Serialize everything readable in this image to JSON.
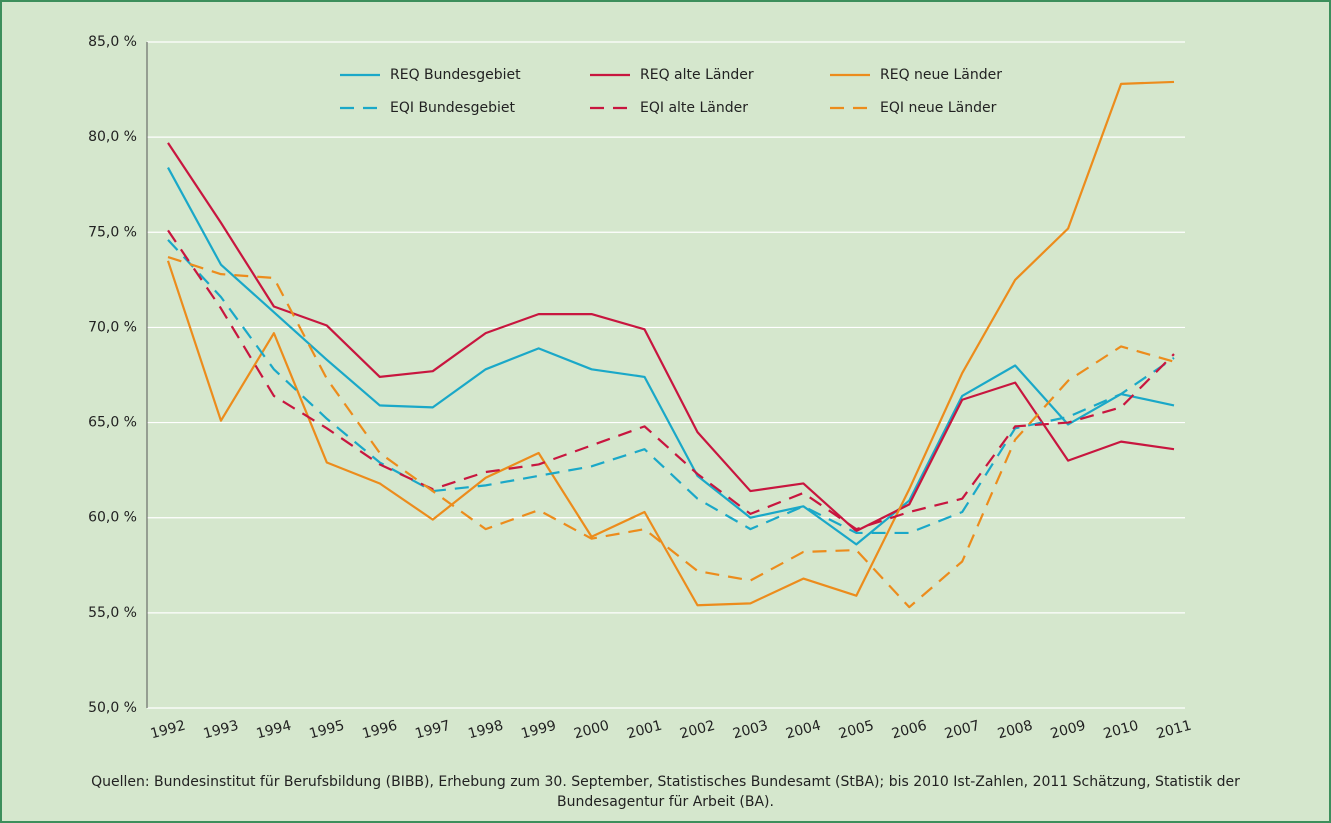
{
  "chart_data": {
    "type": "line",
    "categories": [
      "1992",
      "1993",
      "1994",
      "1995",
      "1996",
      "1997",
      "1998",
      "1999",
      "2000",
      "2001",
      "2002",
      "2003",
      "2004",
      "2005",
      "2006",
      "2007",
      "2008",
      "2009",
      "2010",
      "2011"
    ],
    "series": [
      {
        "name": "REQ Bundesgebiet",
        "color": "#1aa8c8",
        "line_style": "solid",
        "values": [
          78.4,
          73.3,
          70.8,
          68.3,
          65.9,
          65.8,
          67.8,
          68.9,
          67.8,
          67.4,
          62.2,
          60.0,
          60.6,
          58.6,
          60.9,
          66.4,
          68.0,
          64.9,
          66.5,
          65.9
        ]
      },
      {
        "name": "REQ alte Länder",
        "color": "#c8163f",
        "line_style": "solid",
        "values": [
          79.7,
          75.5,
          71.1,
          70.1,
          67.4,
          67.7,
          69.7,
          70.7,
          70.7,
          69.9,
          64.5,
          61.4,
          61.8,
          59.3,
          60.7,
          66.2,
          67.1,
          63.0,
          64.0,
          63.6
        ]
      },
      {
        "name": "REQ neue Länder",
        "color": "#ec8c1c",
        "line_style": "solid",
        "values": [
          73.5,
          65.1,
          69.7,
          62.9,
          61.8,
          59.9,
          62.1,
          63.4,
          59.0,
          60.3,
          55.4,
          55.5,
          56.8,
          55.9,
          61.5,
          67.6,
          72.5,
          75.2,
          82.8,
          82.9
        ]
      },
      {
        "name": "EQI Bundesgebiet",
        "color": "#1aa8c8",
        "line_style": "dashed",
        "values": [
          74.6,
          71.6,
          67.8,
          65.2,
          62.9,
          61.4,
          61.7,
          62.2,
          62.7,
          63.6,
          61.0,
          59.4,
          60.6,
          59.2,
          59.2,
          60.3,
          64.7,
          65.3,
          66.5,
          68.4
        ]
      },
      {
        "name": "EQI alte Länder",
        "color": "#c8163f",
        "line_style": "dashed",
        "values": [
          75.1,
          71.0,
          66.4,
          64.7,
          62.8,
          61.5,
          62.4,
          62.8,
          63.8,
          64.8,
          62.3,
          60.2,
          61.3,
          59.4,
          60.3,
          61.0,
          64.8,
          65.0,
          65.8,
          68.6
        ]
      },
      {
        "name": "EQI neue Länder",
        "color": "#ec8c1c",
        "line_style": "dashed",
        "values": [
          73.7,
          72.8,
          72.6,
          67.3,
          63.4,
          61.4,
          59.4,
          60.4,
          58.9,
          59.4,
          57.2,
          56.7,
          58.2,
          58.3,
          55.3,
          57.7,
          64.1,
          67.2,
          69.0,
          68.2
        ]
      }
    ],
    "ylim": [
      50,
      85
    ],
    "yticks": [
      {
        "value": 50,
        "label": "50,0 %"
      },
      {
        "value": 55,
        "label": "55,0 %"
      },
      {
        "value": 60,
        "label": "60,0 %"
      },
      {
        "value": 65,
        "label": "65,0 %"
      },
      {
        "value": 70,
        "label": "70,0 %"
      },
      {
        "value": 75,
        "label": "75,0 %"
      },
      {
        "value": 80,
        "label": "80,0 %"
      },
      {
        "value": 85,
        "label": "85,0 %"
      }
    ],
    "grid": true,
    "legend": "top",
    "source": "Quellen: Bundesinstitut für Berufsbildung (BIBB), Erhebung zum 30. September, Statistisches Bundesamt (StBA); bis 2010 Ist-Zahlen, 2011 Schätzung, Statistik der Bundesagentur für Arbeit (BA)."
  }
}
